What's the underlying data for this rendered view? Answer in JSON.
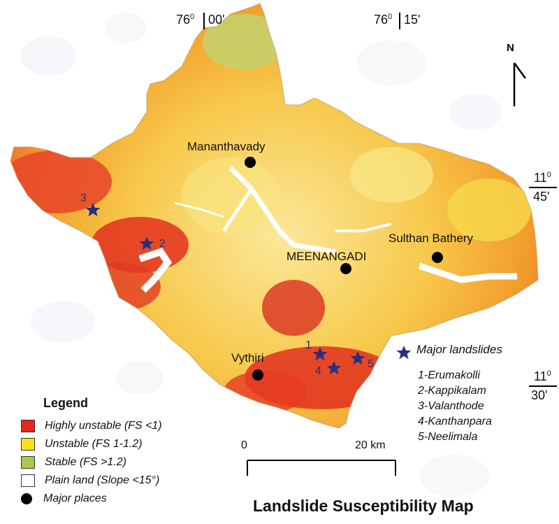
{
  "title": "Landslide Susceptibility Map",
  "coordinates": {
    "lon1_deg": "76",
    "lon1_min": "00'",
    "lon2_deg": "76",
    "lon2_min": "15'",
    "lat1_deg": "11",
    "lat1_min": "45'",
    "lat2_deg": "11",
    "lat2_min": "30'"
  },
  "north_label": "N",
  "places": [
    {
      "name": "Mananthavady"
    },
    {
      "name": "MEENANGADI"
    },
    {
      "name": "Sulthan Bathery"
    },
    {
      "name": "Vythiri"
    }
  ],
  "landslides": {
    "legend_label": "Major landslides",
    "items": [
      {
        "num": "1",
        "text": "1-Erumakolli"
      },
      {
        "num": "2",
        "text": "2-Kappikalam"
      },
      {
        "num": "3",
        "text": "3-Valanthode"
      },
      {
        "num": "4",
        "text": "4-Kanthanpara"
      },
      {
        "num": "5",
        "text": "5-Neelimala"
      }
    ]
  },
  "legend": {
    "title": "Legend",
    "items": [
      {
        "label": "Highly unstable (FS <1)",
        "color": "#e4261c"
      },
      {
        "label": "Unstable (FS 1-1.2)",
        "color": "#f7e21a"
      },
      {
        "label": "Stable (FS >1.2)",
        "color": "#a9c94a"
      },
      {
        "label": "Plain land (Slope <15°)",
        "color": "#ffffff"
      },
      {
        "label": "Major places",
        "color": "#000000"
      }
    ]
  },
  "scale": {
    "start": "0",
    "end": "20 km"
  },
  "colors": {
    "star": "#2b2f7a",
    "red": "#e4261c",
    "orange": "#f29a2a",
    "yellow": "#f7e21a",
    "green": "#a9c94a"
  }
}
